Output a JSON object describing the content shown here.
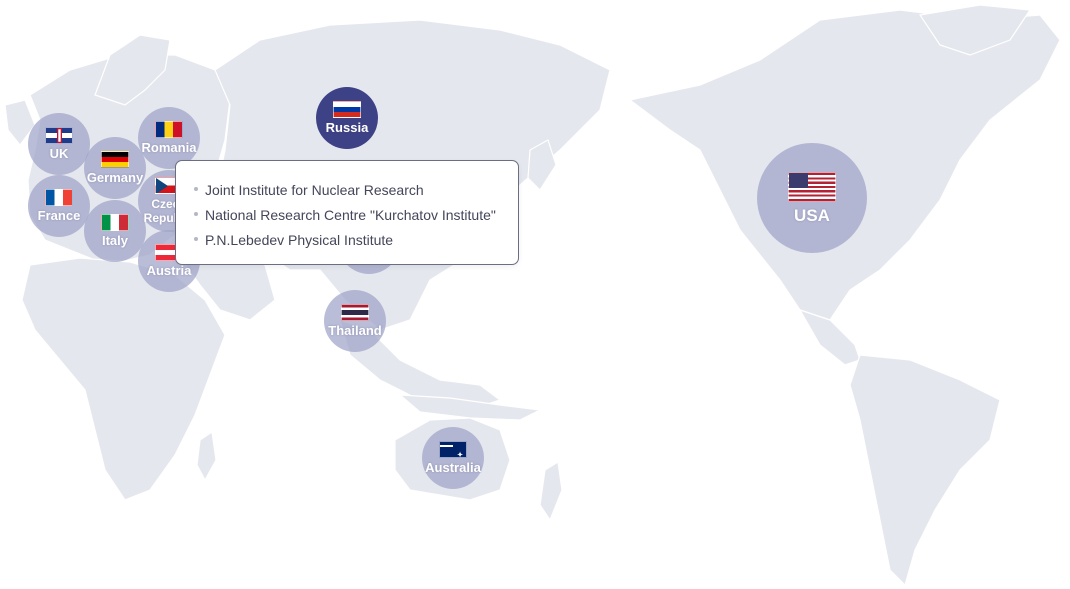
{
  "map": {
    "land_color": "#e5e7ee",
    "marker_color": "#a0a3c8",
    "active_marker_color": "#3d4185"
  },
  "countries": [
    {
      "id": "uk",
      "label": "UK",
      "flag": "uk-flag-icon"
    },
    {
      "id": "germany",
      "label": "Germany",
      "flag": "germany-flag-icon"
    },
    {
      "id": "romania",
      "label": "Romania",
      "flag": "romania-flag-icon"
    },
    {
      "id": "france",
      "label": "France",
      "flag": "france-flag-icon"
    },
    {
      "id": "italy",
      "label": "Italy",
      "flag": "italy-flag-icon"
    },
    {
      "id": "czech",
      "label": "Czech Republic",
      "flag": "czech-flag-icon"
    },
    {
      "id": "austria",
      "label": "Austria",
      "flag": "austria-flag-icon"
    },
    {
      "id": "russia",
      "label": "Russia",
      "flag": "russia-flag-icon",
      "active": true
    },
    {
      "id": "thailand",
      "label": "Thailand",
      "flag": "thailand-flag-icon"
    },
    {
      "id": "australia",
      "label": "Australia",
      "flag": "australia-flag-icon"
    },
    {
      "id": "usa",
      "label": "USA",
      "flag": "usa-flag-icon"
    }
  ],
  "tooltip": {
    "country": "Russia",
    "items": [
      "Joint Institute for Nuclear Research",
      "National Research Centre \"Kurchatov Institute\"",
      "P.N.Lebedev Physical Institute"
    ]
  }
}
